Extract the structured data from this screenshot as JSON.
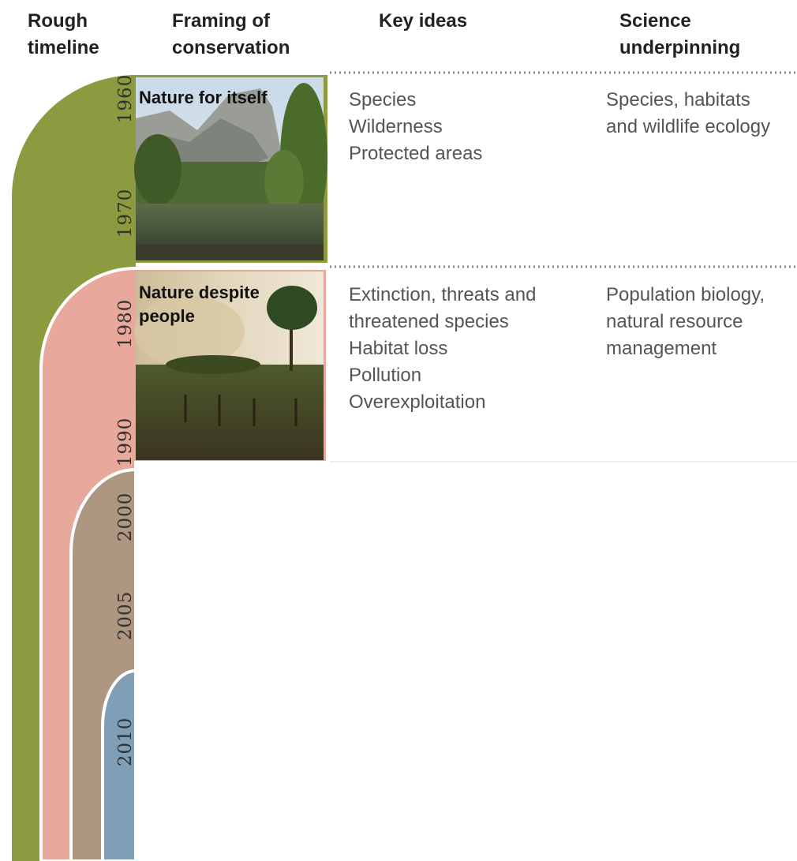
{
  "headers": [
    [
      "Rough",
      "timeline"
    ],
    [
      "Framing of",
      "conservation"
    ],
    [
      "Key ideas"
    ],
    [
      "Science",
      "underpinning"
    ]
  ],
  "years": [
    "1960",
    "1970",
    "1980",
    "1990",
    "2000",
    "2005",
    "2010"
  ],
  "rows": [
    {
      "framing": [
        "Nature for itself"
      ],
      "key_ideas": [
        "Species",
        "Wilderness",
        "Protected areas"
      ],
      "science": [
        "Species, habitats",
        "and wildlife ecology"
      ]
    },
    {
      "framing": [
        "Nature despite",
        "people"
      ],
      "key_ideas": [
        "Extinction, threats and",
        "threatened species",
        "Habitat loss",
        "Pollution",
        "Overexploitation"
      ],
      "science": [
        "Population biology,",
        "natural resource",
        "management"
      ]
    }
  ]
}
